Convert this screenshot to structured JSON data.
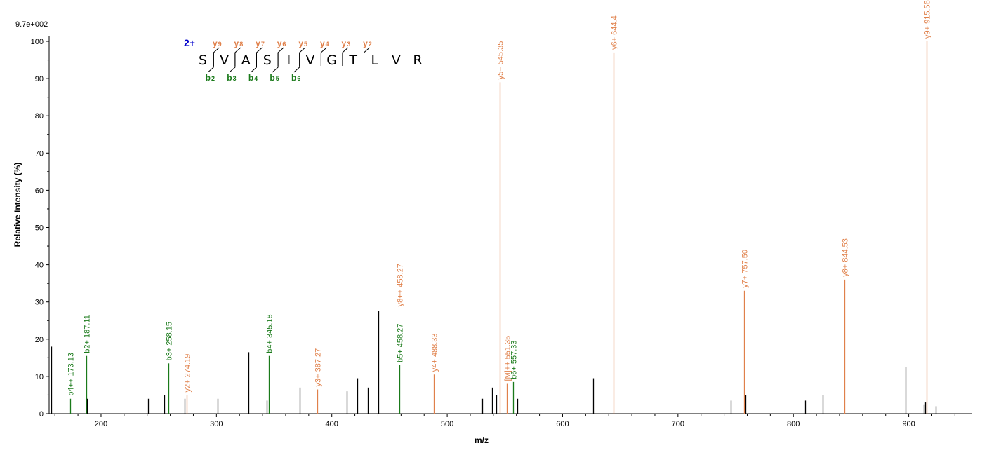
{
  "chart_data": {
    "type": "bar",
    "scale_label": "9.7e+002",
    "xlabel": "m/z",
    "ylabel": "Relative   Intensity (%)",
    "xlim": [
      155,
      955
    ],
    "ylim": [
      0,
      100
    ],
    "x_ticks": [
      200,
      300,
      400,
      500,
      600,
      700,
      800,
      900
    ],
    "y_ticks": [
      0,
      10,
      20,
      30,
      40,
      50,
      60,
      70,
      80,
      90,
      100
    ],
    "colors": {
      "b_ion": "#1a7a1a",
      "y_ion": "#e0804a",
      "other": "#000000",
      "charge": "#0000cc"
    },
    "peaks": [
      {
        "mz": 157.1,
        "intensity": 18,
        "type": "other",
        "label": ""
      },
      {
        "mz": 173.13,
        "intensity": 4,
        "type": "b",
        "label": "b4++ 173.13"
      },
      {
        "mz": 187.11,
        "intensity": 15.5,
        "type": "b",
        "label": "b2+ 187.11"
      },
      {
        "mz": 188.0,
        "intensity": 4,
        "type": "other",
        "label": ""
      },
      {
        "mz": 241.0,
        "intensity": 4,
        "type": "other",
        "label": ""
      },
      {
        "mz": 254.5,
        "intensity": 5,
        "type": "other",
        "label": ""
      },
      {
        "mz": 258.15,
        "intensity": 13.5,
        "type": "b",
        "label": "b3+ 258.15"
      },
      {
        "mz": 272.5,
        "intensity": 4,
        "type": "other",
        "label": ""
      },
      {
        "mz": 274.19,
        "intensity": 5,
        "type": "y",
        "label": "y2+ 274.19"
      },
      {
        "mz": 301.0,
        "intensity": 4,
        "type": "other",
        "label": ""
      },
      {
        "mz": 328.0,
        "intensity": 16.5,
        "type": "other",
        "label": ""
      },
      {
        "mz": 343.5,
        "intensity": 3.5,
        "type": "other",
        "label": ""
      },
      {
        "mz": 345.18,
        "intensity": 15.5,
        "type": "b",
        "label": "b4+ 345.18"
      },
      {
        "mz": 372.0,
        "intensity": 7,
        "type": "other",
        "label": ""
      },
      {
        "mz": 387.27,
        "intensity": 6.5,
        "type": "y",
        "label": "y3+ 387.27"
      },
      {
        "mz": 413.0,
        "intensity": 6,
        "type": "other",
        "label": ""
      },
      {
        "mz": 422.0,
        "intensity": 9.5,
        "type": "other",
        "label": ""
      },
      {
        "mz": 431.0,
        "intensity": 7,
        "type": "other",
        "label": ""
      },
      {
        "mz": 440.5,
        "intensity": 27.5,
        "type": "other",
        "label": ""
      },
      {
        "mz": 458.27,
        "intensity": 13,
        "type": "b",
        "label": "b5+ 458.27"
      },
      {
        "mz": 458.27,
        "intensity": 0,
        "type": "y",
        "label": "y8++ 458.27",
        "label_height": 28
      },
      {
        "mz": 488.33,
        "intensity": 10.5,
        "type": "y",
        "label": "y4+ 488.33"
      },
      {
        "mz": 529.5,
        "intensity": 4,
        "type": "other",
        "label": ""
      },
      {
        "mz": 530.5,
        "intensity": 4,
        "type": "other",
        "label": ""
      },
      {
        "mz": 539.0,
        "intensity": 7,
        "type": "other",
        "label": ""
      },
      {
        "mz": 542.5,
        "intensity": 5,
        "type": "other",
        "label": ""
      },
      {
        "mz": 545.35,
        "intensity": 89,
        "type": "y",
        "label": "y5+ 545.35"
      },
      {
        "mz": 551.35,
        "intensity": 8,
        "type": "y",
        "label": "[M]++ 551.35"
      },
      {
        "mz": 557.33,
        "intensity": 8.5,
        "type": "b",
        "label": "b6+ 557.33"
      },
      {
        "mz": 561.0,
        "intensity": 4,
        "type": "other",
        "label": ""
      },
      {
        "mz": 626.5,
        "intensity": 9.5,
        "type": "other",
        "label": ""
      },
      {
        "mz": 644.4,
        "intensity": 97,
        "type": "y",
        "label": "y6+ 644.4"
      },
      {
        "mz": 745.5,
        "intensity": 3.5,
        "type": "other",
        "label": ""
      },
      {
        "mz": 757.5,
        "intensity": 33,
        "type": "y",
        "label": "y7+ 757.50"
      },
      {
        "mz": 758.5,
        "intensity": 5,
        "type": "other",
        "label": ""
      },
      {
        "mz": 810.5,
        "intensity": 3.5,
        "type": "other",
        "label": ""
      },
      {
        "mz": 825.5,
        "intensity": 5,
        "type": "other",
        "label": ""
      },
      {
        "mz": 844.53,
        "intensity": 36,
        "type": "y",
        "label": "y8+ 844.53"
      },
      {
        "mz": 897.5,
        "intensity": 12.5,
        "type": "other",
        "label": ""
      },
      {
        "mz": 913.0,
        "intensity": 2.5,
        "type": "other",
        "label": ""
      },
      {
        "mz": 914.0,
        "intensity": 3,
        "type": "other",
        "label": ""
      },
      {
        "mz": 915.56,
        "intensity": 100,
        "type": "y",
        "label": "y9+ 915.56"
      },
      {
        "mz": 923.5,
        "intensity": 2,
        "type": "other",
        "label": ""
      }
    ],
    "sequence": {
      "charge": "2+",
      "residues": [
        "S",
        "V",
        "A",
        "S",
        "I",
        "V",
        "G",
        "T",
        "L",
        "V",
        "R"
      ],
      "y_ions": [
        {
          "after_residue": 1,
          "label": "y",
          "sub": "9"
        },
        {
          "after_residue": 2,
          "label": "y",
          "sub": "8"
        },
        {
          "after_residue": 3,
          "label": "y",
          "sub": "7"
        },
        {
          "after_residue": 4,
          "label": "y",
          "sub": "6"
        },
        {
          "after_residue": 5,
          "label": "y",
          "sub": "5"
        },
        {
          "after_residue": 6,
          "label": "y",
          "sub": "4"
        },
        {
          "after_residue": 7,
          "label": "y",
          "sub": "3"
        },
        {
          "after_residue": 8,
          "label": "y",
          "sub": "2"
        }
      ],
      "b_ions": [
        {
          "after_residue": 1,
          "label": "b",
          "sub": "2"
        },
        {
          "after_residue": 2,
          "label": "b",
          "sub": "3"
        },
        {
          "after_residue": 3,
          "label": "b",
          "sub": "4"
        },
        {
          "after_residue": 4,
          "label": "b",
          "sub": "5"
        },
        {
          "after_residue": 5,
          "label": "b",
          "sub": "6"
        }
      ]
    }
  }
}
